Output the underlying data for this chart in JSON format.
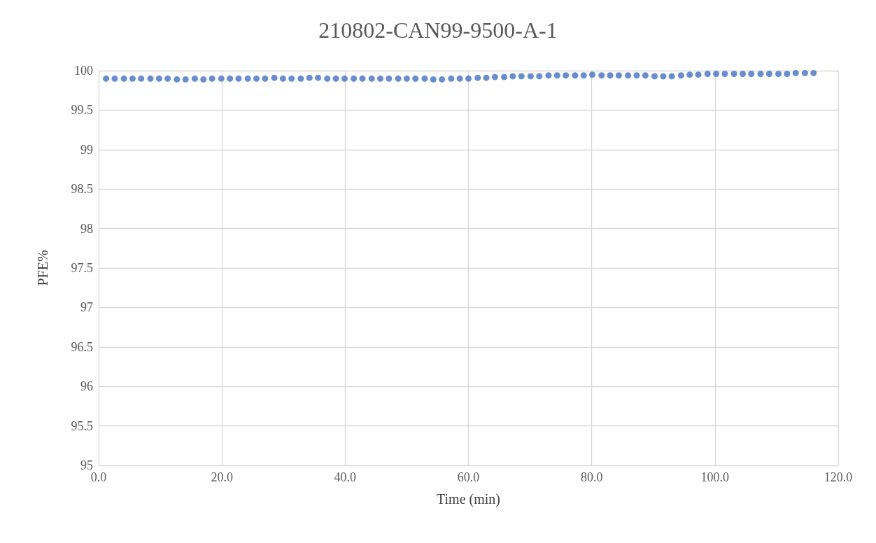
{
  "chart_data": {
    "type": "scatter",
    "title": "210802-CAN99-9500-A-1",
    "xlabel": "Time (min)",
    "ylabel": "PFE%",
    "x": [
      1.2,
      2.6,
      4.1,
      5.5,
      6.9,
      8.4,
      9.8,
      11.2,
      12.7,
      14.1,
      15.6,
      17.0,
      18.4,
      19.9,
      21.3,
      22.7,
      24.2,
      25.6,
      27.0,
      28.5,
      29.9,
      31.3,
      32.8,
      34.2,
      35.6,
      37.1,
      38.5,
      39.9,
      41.4,
      42.8,
      44.3,
      45.7,
      47.1,
      48.6,
      50.0,
      51.4,
      52.9,
      54.3,
      55.7,
      57.2,
      58.6,
      60.0,
      61.5,
      62.9,
      64.3,
      65.8,
      67.2,
      68.6,
      70.1,
      71.5,
      73.0,
      74.4,
      75.8,
      77.3,
      78.7,
      80.1,
      81.6,
      83.0,
      84.4,
      85.9,
      87.3,
      88.7,
      90.2,
      91.6,
      93.0,
      94.5,
      95.9,
      97.3,
      98.8,
      100.2,
      101.6,
      103.1,
      104.5,
      105.9,
      107.4,
      108.8,
      110.3,
      111.7,
      113.1,
      114.6,
      116.0
    ],
    "series": [
      {
        "color": "#4472c4",
        "values": [
          99.9,
          99.9,
          99.9,
          99.9,
          99.9,
          99.9,
          99.9,
          99.9,
          99.89,
          99.89,
          99.9,
          99.89,
          99.9,
          99.9,
          99.9,
          99.9,
          99.9,
          99.9,
          99.9,
          99.91,
          99.9,
          99.9,
          99.9,
          99.91,
          99.91,
          99.9,
          99.9,
          99.9,
          99.9,
          99.9,
          99.9,
          99.9,
          99.9,
          99.9,
          99.9,
          99.9,
          99.9,
          99.89,
          99.89,
          99.9,
          99.9,
          99.9,
          99.91,
          99.91,
          99.92,
          99.92,
          99.93,
          99.93,
          99.93,
          99.93,
          99.94,
          99.94,
          99.94,
          99.94,
          99.94,
          99.95,
          99.94,
          99.94,
          99.94,
          99.94,
          99.94,
          99.94,
          99.93,
          99.93,
          99.93,
          99.94,
          99.95,
          99.95,
          99.96,
          99.96,
          99.96,
          99.96,
          99.96,
          99.96,
          99.96,
          99.96,
          99.96,
          99.96,
          99.97,
          99.97,
          99.97
        ]
      }
    ],
    "xlim": [
      0,
      120
    ],
    "xticks": [
      {
        "value": 0,
        "label": "0.0"
      },
      {
        "value": 20,
        "label": "20.0"
      },
      {
        "value": 40,
        "label": "40.0"
      },
      {
        "value": 60,
        "label": "60.0"
      },
      {
        "value": 80,
        "label": "80.0"
      },
      {
        "value": 100,
        "label": "100.0"
      },
      {
        "value": 120,
        "label": "120.0"
      }
    ],
    "ylim": [
      95,
      100
    ],
    "yticks": [
      95,
      95.5,
      96,
      96.5,
      97,
      97.5,
      98,
      98.5,
      99,
      99.5,
      100
    ],
    "grid": true,
    "marker": "circle"
  }
}
